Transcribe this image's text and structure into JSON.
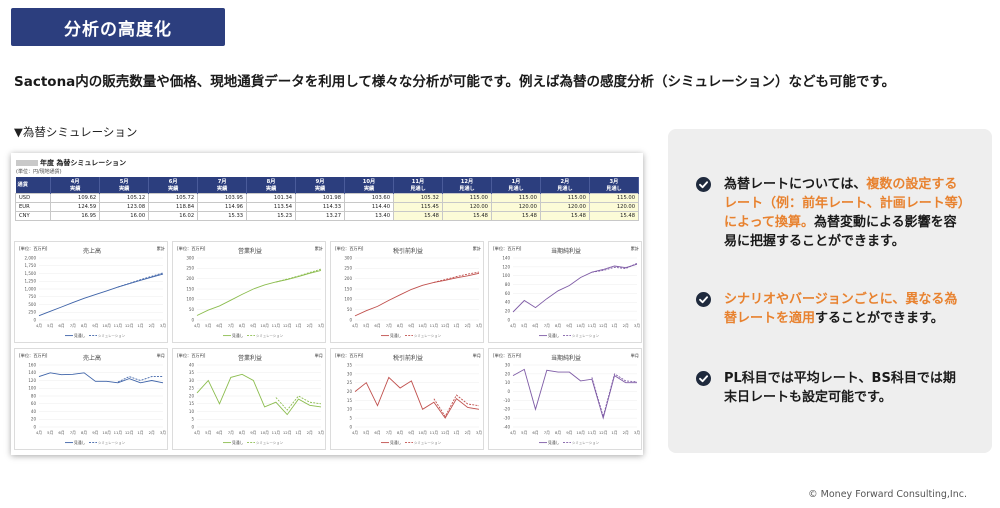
{
  "page_title": "分析の高度化",
  "lead_text": "Sactona内の販売数量や価格、現地通貨データを利用して様々な分析が可能です。例えば為替の感度分析（シミュレーション）なども可能です。",
  "section_label": "▼為替シミュレーション",
  "screenshot": {
    "title": "年度 為替シミュレーション",
    "unit": "(単位：円/現地通貨)",
    "table": {
      "corner": "通貨",
      "months": [
        "4月",
        "5月",
        "6月",
        "7月",
        "8月",
        "9月",
        "10月",
        "11月",
        "12月",
        "1月",
        "2月",
        "3月"
      ],
      "kinds": [
        "実績",
        "実績",
        "実績",
        "実績",
        "実績",
        "実績",
        "実績",
        "見通し",
        "見通し",
        "見通し",
        "見通し",
        "見通し"
      ],
      "rows": [
        {
          "currency": "USD",
          "values": [
            "109.62",
            "105.12",
            "105.72",
            "103.95",
            "101.34",
            "101.98",
            "103.60",
            "105.32",
            "115.00",
            "115.00",
            "115.00",
            "115.00"
          ]
        },
        {
          "currency": "EUR",
          "values": [
            "124.59",
            "123.08",
            "118.84",
            "114.96",
            "113.54",
            "114.33",
            "114.40",
            "115.45",
            "120.00",
            "120.00",
            "120.00",
            "120.00"
          ]
        },
        {
          "currency": "CNY",
          "values": [
            "16.95",
            "16.00",
            "16.02",
            "15.33",
            "15.23",
            "13.27",
            "13.40",
            "15.48",
            "15.48",
            "15.48",
            "15.48",
            "15.48"
          ]
        }
      ]
    }
  },
  "charts": {
    "unit_label": "[単位：百万円]",
    "legend_actual": "見通し",
    "legend_sim": "シミュレーション",
    "x_labels": [
      "4月",
      "5月",
      "6月",
      "7月",
      "8月",
      "9月",
      "10月",
      "11月",
      "12月",
      "1月",
      "2月",
      "3月"
    ]
  },
  "chart_data": [
    {
      "type": "line",
      "title": "売上高",
      "tag": "累計",
      "color": "#3e63a8",
      "ylim": [
        0,
        2000
      ],
      "yticks": [
        0,
        250,
        500,
        750,
        1000,
        1250,
        1500,
        1750,
        2000
      ],
      "series": [
        {
          "name": "見通し",
          "values": [
            140,
            280,
            420,
            560,
            700,
            820,
            940,
            1060,
            1170,
            1280,
            1380,
            1480
          ]
        },
        {
          "name": "シミュレーション",
          "values": [
            null,
            null,
            null,
            null,
            null,
            null,
            null,
            1060,
            1180,
            1300,
            1410,
            1520
          ]
        }
      ]
    },
    {
      "type": "line",
      "title": "営業利益",
      "tag": "累計",
      "color": "#8cbd4f",
      "ylim": [
        0,
        300
      ],
      "yticks": [
        0,
        50,
        100,
        150,
        200,
        250,
        300
      ],
      "series": [
        {
          "name": "見通し",
          "values": [
            22,
            48,
            68,
            96,
            124,
            150,
            170,
            184,
            196,
            210,
            226,
            240
          ]
        },
        {
          "name": "シミュレーション",
          "values": [
            null,
            null,
            null,
            null,
            null,
            null,
            null,
            184,
            198,
            213,
            230,
            246
          ]
        }
      ]
    },
    {
      "type": "line",
      "title": "税引前利益",
      "tag": "累計",
      "color": "#c0504d",
      "ylim": [
        0,
        300
      ],
      "yticks": [
        0,
        50,
        100,
        150,
        200,
        250,
        300
      ],
      "series": [
        {
          "name": "見通し",
          "values": [
            20,
            45,
            66,
            95,
            122,
            148,
            168,
            182,
            192,
            204,
            214,
            226
          ]
        },
        {
          "name": "シミュレーション",
          "values": [
            null,
            null,
            null,
            null,
            null,
            null,
            null,
            182,
            196,
            210,
            222,
            232
          ]
        }
      ]
    },
    {
      "type": "line",
      "title": "当期純利益",
      "tag": "累計",
      "color": "#7f5ca6",
      "ylim": [
        0,
        140
      ],
      "yticks": [
        0,
        20,
        40,
        60,
        80,
        100,
        120,
        140
      ],
      "series": [
        {
          "name": "見通し",
          "values": [
            18,
            44,
            28,
            48,
            66,
            78,
            96,
            108,
            114,
            122,
            118,
            126
          ]
        },
        {
          "name": "シミュレーション",
          "values": [
            null,
            null,
            null,
            null,
            null,
            null,
            null,
            108,
            112,
            119,
            116,
            128
          ]
        }
      ]
    },
    {
      "type": "line",
      "title": "売上高",
      "tag": "単月",
      "color": "#3e63a8",
      "ylim": [
        0,
        160
      ],
      "yticks": [
        0,
        20,
        40,
        60,
        80,
        100,
        120,
        140,
        160
      ],
      "series": [
        {
          "name": "見通し",
          "values": [
            130,
            140,
            135,
            136,
            140,
            118,
            118,
            114,
            125,
            114,
            120,
            114
          ]
        },
        {
          "name": "シミュレーション",
          "values": [
            null,
            null,
            null,
            null,
            null,
            null,
            null,
            116,
            130,
            120,
            130,
            130
          ]
        }
      ]
    },
    {
      "type": "line",
      "title": "営業利益",
      "tag": "単月",
      "color": "#8cbd4f",
      "ylim": [
        0,
        40
      ],
      "yticks": [
        0,
        5,
        10,
        15,
        20,
        25,
        30,
        35,
        40
      ],
      "series": [
        {
          "name": "見通し",
          "values": [
            22,
            30,
            15,
            32,
            34,
            30,
            13,
            16,
            8,
            18,
            14,
            13
          ]
        },
        {
          "name": "シミュレーション",
          "values": [
            null,
            null,
            null,
            null,
            null,
            null,
            null,
            19,
            11,
            20,
            16,
            15
          ]
        }
      ]
    },
    {
      "type": "line",
      "title": "税引前利益",
      "tag": "単月",
      "color": "#c0504d",
      "ylim": [
        0,
        35
      ],
      "yticks": [
        0,
        5,
        10,
        15,
        20,
        25,
        30,
        35
      ],
      "series": [
        {
          "name": "見通し",
          "values": [
            20,
            25,
            12,
            28,
            22,
            26,
            10,
            14,
            5,
            16,
            11,
            10
          ]
        },
        {
          "name": "シミュレーション",
          "values": [
            null,
            null,
            null,
            null,
            null,
            null,
            null,
            16,
            6,
            18,
            13,
            12
          ]
        }
      ]
    },
    {
      "type": "line",
      "title": "当期純利益",
      "tag": "単月",
      "color": "#7f5ca6",
      "ylim": [
        -40,
        30
      ],
      "yticks": [
        30,
        20,
        10,
        0,
        -10,
        -20,
        -30,
        -40
      ],
      "series": [
        {
          "name": "見通し",
          "values": [
            18,
            25,
            -20,
            24,
            22,
            22,
            12,
            14,
            -30,
            18,
            10,
            10
          ]
        },
        {
          "name": "シミュレーション",
          "values": [
            null,
            null,
            null,
            null,
            null,
            null,
            null,
            16,
            -28,
            20,
            12,
            11
          ]
        }
      ]
    }
  ],
  "bullets": [
    {
      "parts": [
        {
          "t": "為替レートについては、",
          "c": ""
        },
        {
          "t": "複数の設定するレート（例：前年レート、計画レート等）によって換算。",
          "c": "orange"
        },
        {
          "t": "為替変動による影響を容易に把握することができます。",
          "c": ""
        }
      ]
    },
    {
      "parts": [
        {
          "t": "シナリオやバージョンごとに、異なる為替レートを適用",
          "c": "orange"
        },
        {
          "t": "することができます。",
          "c": ""
        }
      ]
    },
    {
      "parts": [
        {
          "t": "PL科目では平均レート、BS科目では期末日レートも設定可能です。",
          "c": ""
        }
      ]
    }
  ],
  "copyright": "© Money Forward Consulting,Inc."
}
